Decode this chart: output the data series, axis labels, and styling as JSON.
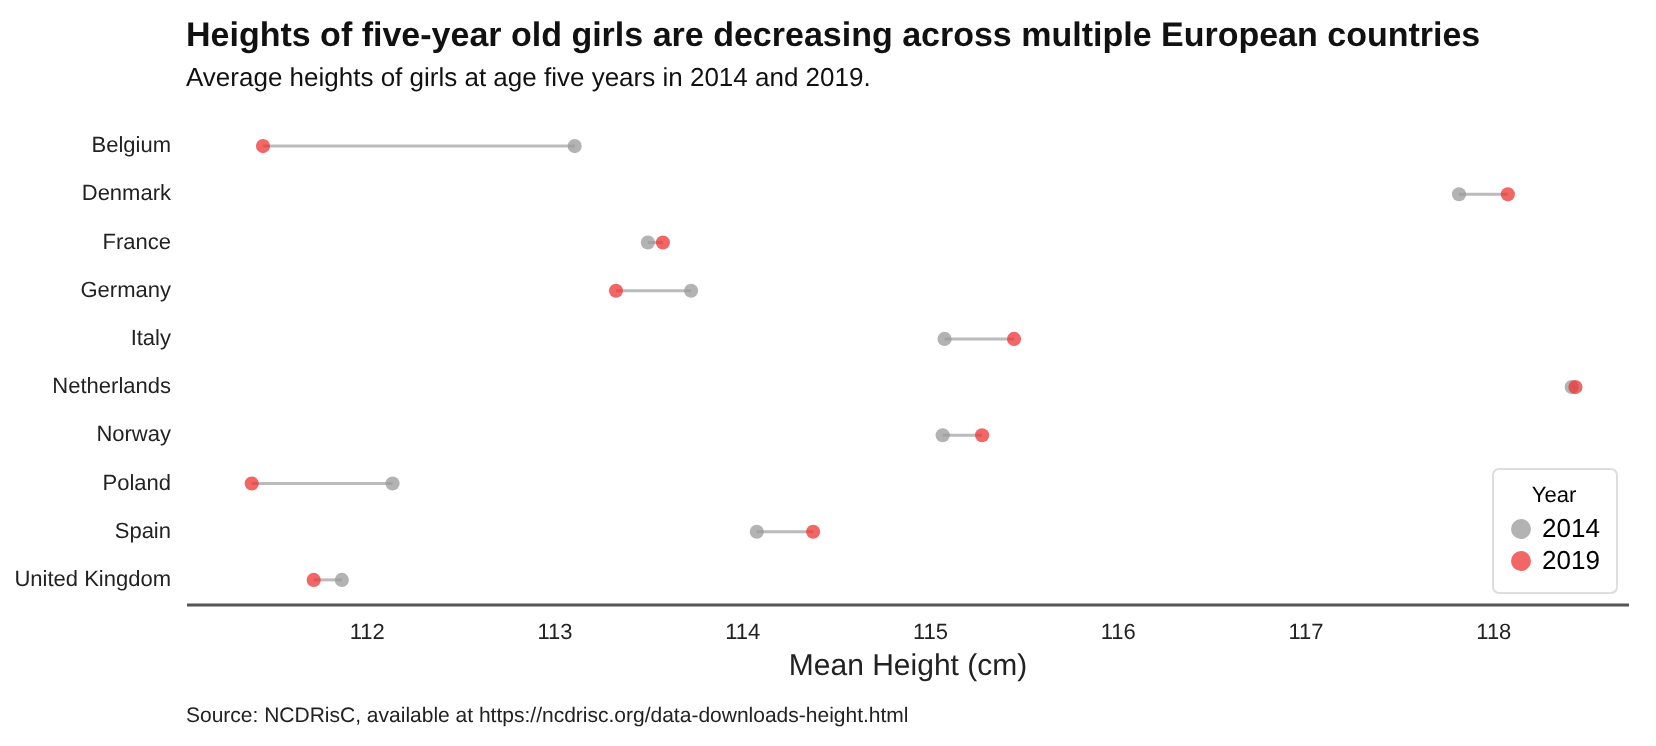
{
  "chart_data": {
    "type": "scatter",
    "orientation": "horizontal",
    "title": "Heights of five-year old girls are decreasing across multiple European countries",
    "subtitle": "Average heights of girls at age five years in 2014 and 2019.",
    "xlabel": "Mean Height (cm)",
    "legend_title": "Year",
    "categories": [
      "Belgium",
      "Denmark",
      "France",
      "Germany",
      "Italy",
      "Netherlands",
      "Norway",
      "Poland",
      "Spain",
      "United Kingdom"
    ],
    "series": [
      {
        "name": "2014",
        "color": "#999999",
        "values": [
          113.11,
          117.82,
          113.5,
          113.73,
          115.08,
          118.42,
          115.07,
          112.14,
          114.08,
          111.87
        ]
      },
      {
        "name": "2019",
        "color": "#ee3333",
        "values": [
          111.45,
          118.08,
          113.58,
          113.33,
          115.45,
          118.44,
          115.28,
          111.39,
          114.38,
          111.72
        ]
      }
    ],
    "xlim": [
      111.04,
      118.72
    ],
    "xticks": [
      112,
      113,
      114,
      115,
      116,
      117,
      118
    ],
    "grid": false,
    "legend": "bottom right",
    "marker": "circle",
    "annotations": [
      "Source: NCDRisC, available at https://ncdrisc.org/data-downloads-height.html"
    ]
  }
}
